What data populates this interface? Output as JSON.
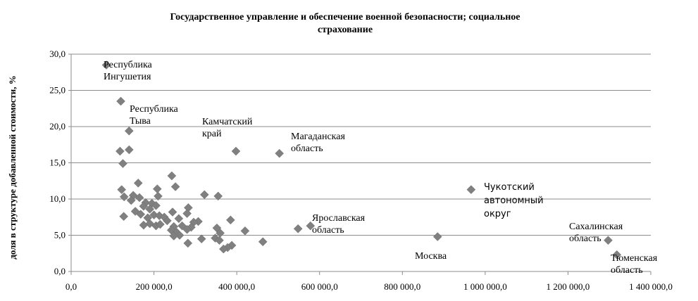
{
  "chart_data": {
    "type": "scatter",
    "title_lines": [
      "Государственное управление и обеспечение военной безопасности;  социальное",
      "страхование"
    ],
    "ylabel": "доля в структуре добавленной стоимости, %",
    "xlim": [
      0,
      1400000
    ],
    "ylim": [
      0,
      30
    ],
    "x_ticks": [
      0,
      200000,
      400000,
      600000,
      800000,
      1000000,
      1200000,
      1400000
    ],
    "x_tick_labels": [
      "0,0",
      "200 000,0",
      "400 000,0",
      "600 000,0",
      "800 000,0",
      "1 000 000,0",
      "1 200 000,0",
      "1 400 000,0"
    ],
    "y_ticks": [
      0,
      5,
      10,
      15,
      20,
      25,
      30
    ],
    "y_tick_labels": [
      "0,0",
      "5,0",
      "10,0",
      "15,0",
      "20,0",
      "25,0",
      "30,0"
    ],
    "grid": "horizontal",
    "marker_color": "#808080",
    "points": [
      [
        85000,
        28.5
      ],
      [
        120000,
        23.5
      ],
      [
        140000,
        19.4
      ],
      [
        118000,
        16.6
      ],
      [
        140000,
        16.8
      ],
      [
        125000,
        14.9
      ],
      [
        398000,
        16.6
      ],
      [
        503000,
        16.3
      ],
      [
        243000,
        13.2
      ],
      [
        162000,
        12.2
      ],
      [
        252000,
        11.7
      ],
      [
        208000,
        11.4
      ],
      [
        122000,
        11.3
      ],
      [
        966000,
        11.3
      ],
      [
        150000,
        10.5
      ],
      [
        165000,
        10.2
      ],
      [
        210000,
        10.4
      ],
      [
        128000,
        10.3
      ],
      [
        322000,
        10.6
      ],
      [
        355000,
        10.4
      ],
      [
        145000,
        9.8
      ],
      [
        180000,
        9.5
      ],
      [
        195000,
        9.4
      ],
      [
        205000,
        9.1
      ],
      [
        175000,
        9.0
      ],
      [
        283000,
        8.8
      ],
      [
        190000,
        8.6
      ],
      [
        155000,
        8.3
      ],
      [
        245000,
        8.2
      ],
      [
        280000,
        8.0
      ],
      [
        168000,
        7.9
      ],
      [
        200000,
        7.8
      ],
      [
        213000,
        7.7
      ],
      [
        127000,
        7.6
      ],
      [
        225000,
        7.5
      ],
      [
        185000,
        7.4
      ],
      [
        260000,
        7.3
      ],
      [
        385000,
        7.1
      ],
      [
        232000,
        7.0
      ],
      [
        307000,
        6.9
      ],
      [
        296000,
        6.8
      ],
      [
        190000,
        6.6
      ],
      [
        175000,
        6.4
      ],
      [
        205000,
        6.3
      ],
      [
        215000,
        6.5
      ],
      [
        268000,
        6.3
      ],
      [
        248000,
        6.2
      ],
      [
        290000,
        6.1
      ],
      [
        352000,
        6.0
      ],
      [
        578000,
        6.3
      ],
      [
        548000,
        5.9
      ],
      [
        242000,
        5.7
      ],
      [
        280000,
        5.8
      ],
      [
        420000,
        5.6
      ],
      [
        360000,
        5.3
      ],
      [
        255000,
        5.4
      ],
      [
        262000,
        5.0
      ],
      [
        248000,
        4.9
      ],
      [
        885000,
        4.8
      ],
      [
        348000,
        4.6
      ],
      [
        315000,
        4.5
      ],
      [
        358000,
        4.3
      ],
      [
        463000,
        4.1
      ],
      [
        282000,
        3.9
      ],
      [
        388000,
        3.6
      ],
      [
        1297000,
        4.3
      ],
      [
        378000,
        3.3
      ],
      [
        368000,
        3.1
      ],
      [
        1318000,
        2.3
      ]
    ],
    "annotations": [
      {
        "lines": [
          "Республика",
          "Ингушетия"
        ],
        "font": "serif"
      },
      {
        "lines": [
          "Республика",
          "Тыва"
        ],
        "font": "serif"
      },
      {
        "lines": [
          "Камчатский",
          "край"
        ],
        "font": "serif"
      },
      {
        "lines": [
          "Магаданская",
          "область"
        ],
        "font": "serif"
      },
      {
        "lines": [
          "Чукотский",
          "автономный",
          "округ"
        ],
        "font": "sans"
      },
      {
        "lines": [
          "Ярославская",
          "область"
        ],
        "font": "serif"
      },
      {
        "lines": [
          "Москва"
        ],
        "font": "serif"
      },
      {
        "lines": [
          "Сахалинская",
          "область"
        ],
        "font": "serif"
      },
      {
        "lines": [
          "Тюменская",
          "область"
        ],
        "font": "serif"
      }
    ]
  }
}
